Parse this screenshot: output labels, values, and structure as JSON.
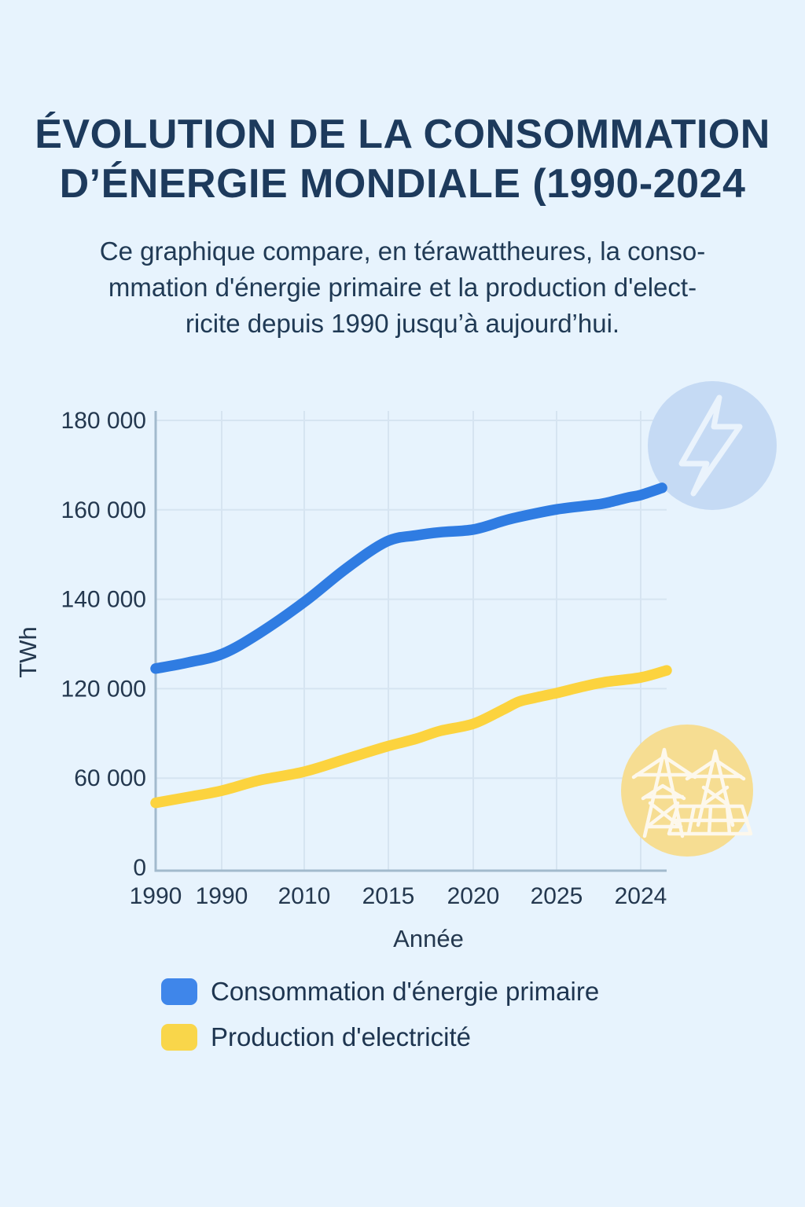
{
  "page": {
    "background": "#e7f3fd"
  },
  "colors": {
    "title": "#1d3a5c",
    "text": "#203a55",
    "axis": "#a2bacd",
    "grid": "#d6e4f1",
    "tick_label": "#24384f",
    "series_blue": "#2f7ce2",
    "series_yellow": "#fcd33e",
    "legend_blue": "#3f86ea",
    "legend_yellow": "#f9d64a",
    "bolt_circle_fill": "#c5daf4",
    "bolt_stroke": "#eaf3fc",
    "towers_circle_fill": "#f6dd92",
    "towers_stroke": "#fdf8ec"
  },
  "header": {
    "title_line1": "ÉVOLUTION DE LA CONSOMMATION",
    "title_line2": "D’ÉNERGIE MONDIALE (1990-2024",
    "subtitle_lines": [
      "Ce graphique compare, en térawattheures, la conso-",
      "mmation d'énergie primaire et la production d'elect-",
      "ricite depuis 1990 jusqu’à aujourd’hui."
    ]
  },
  "chart_data": {
    "type": "line",
    "title": "ÉVOLUTION DE LA CONSOMMATION D’ÉNERGIE MONDIALE (1990-2024",
    "xlabel": "Année",
    "ylabel": "TWh",
    "unit": "TWh",
    "x_ticks": [
      "1990",
      "1990",
      "2010",
      "2015",
      "2020",
      "2025",
      "2024"
    ],
    "y_ticks": [
      "180 000",
      "160 000",
      "140 000",
      "120 000",
      "60 000",
      "0"
    ],
    "y_tick_values": [
      180000,
      160000,
      140000,
      120000,
      60000,
      0
    ],
    "grid": true,
    "legend_position": "bottom-left",
    "series": [
      {
        "name": "Consommation d'énergie primaire",
        "color": "#2f7ce2",
        "points": [
          [
            0.0,
            124500
          ],
          [
            0.065,
            125900
          ],
          [
            0.131,
            127800
          ],
          [
            0.203,
            132400
          ],
          [
            0.291,
            139400
          ],
          [
            0.372,
            146800
          ],
          [
            0.452,
            152900
          ],
          [
            0.511,
            154300
          ],
          [
            0.557,
            155000
          ],
          [
            0.622,
            155600
          ],
          [
            0.68,
            157500
          ],
          [
            0.711,
            158400
          ],
          [
            0.785,
            160100
          ],
          [
            0.849,
            161000
          ],
          [
            0.88,
            161500
          ],
          [
            0.926,
            162800
          ],
          [
            0.949,
            163300
          ],
          [
            0.991,
            164900
          ]
        ]
      },
      {
        "name": "Production d'electricité",
        "color": "#fcd33e",
        "points": [
          [
            0.0,
            43400
          ],
          [
            0.065,
            47400
          ],
          [
            0.131,
            51700
          ],
          [
            0.203,
            58500
          ],
          [
            0.291,
            64300
          ],
          [
            0.372,
            72800
          ],
          [
            0.452,
            81200
          ],
          [
            0.511,
            86500
          ],
          [
            0.557,
            91700
          ],
          [
            0.622,
            96500
          ],
          [
            0.68,
            106000
          ],
          [
            0.711,
            111300
          ],
          [
            0.742,
            113900
          ],
          [
            0.785,
            117100
          ],
          [
            0.834,
            120400
          ],
          [
            0.88,
            121500
          ],
          [
            0.949,
            122500
          ],
          [
            1.0,
            124100
          ]
        ]
      }
    ]
  },
  "legend": {
    "items": [
      {
        "label": "Consommation d'énergie primaire",
        "color": "#3f86ea"
      },
      {
        "label": "Production d'electricité",
        "color": "#f9d64a"
      }
    ]
  },
  "icons": {
    "top_right": "lightning-bolt-icon",
    "bottom_right": "transmission-towers-solar-icon"
  }
}
